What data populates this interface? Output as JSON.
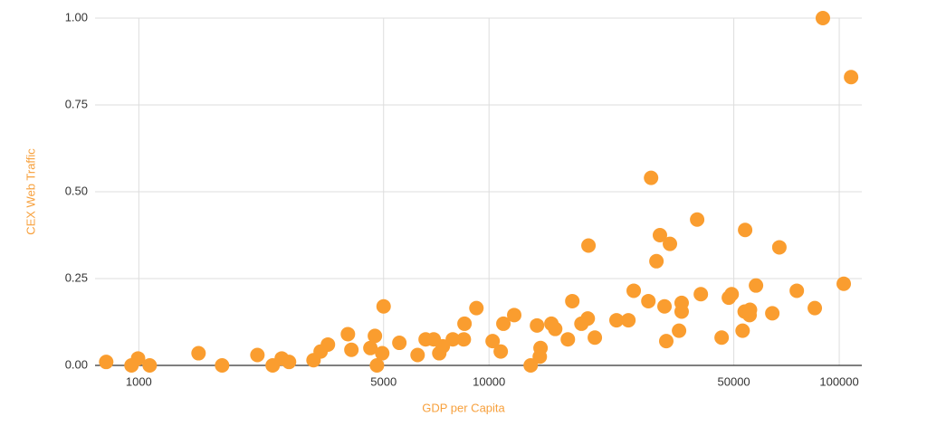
{
  "chart_data": {
    "type": "scatter",
    "x_label": "GDP per Capita",
    "y_label": "CEX Web Traffic",
    "xscale": "log",
    "grid": true,
    "color": "#fa9d2f",
    "xlim": [
      750,
      116000
    ],
    "ylim": [
      0,
      1
    ],
    "xticks": [
      1000,
      5000,
      10000,
      50000,
      100000
    ],
    "yticks": [
      {
        "value": 0,
        "label": "0.00"
      },
      {
        "value": 0.25,
        "label": "0.25"
      },
      {
        "value": 0.5,
        "label": "0.50"
      },
      {
        "value": 0.75,
        "label": "0.75"
      },
      {
        "value": 1,
        "label": "1.00"
      }
    ],
    "x": [
      807,
      995,
      953,
      1074,
      1481,
      1729,
      2181,
      2411,
      2559,
      2685,
      3154,
      3305,
      3467,
      3954,
      4046,
      4584,
      4722,
      4786,
      4955,
      5000,
      5546,
      6252,
      6592,
      6950,
      7211,
      7379,
      7880,
      8472,
      8511,
      9204,
      10240,
      10800,
      10990,
      11800,
      13150,
      13710,
      14030,
      13960,
      15070,
      15450,
      16790,
      17290,
      18360,
      19140,
      19230,
      20050,
      23120,
      25000,
      25890,
      28510,
      29020,
      30060,
      30760,
      31700,
      32070,
      32850,
      34880,
      35480,
      35480,
      39290,
      40250,
      46150,
      48390,
      49300,
      52970,
      53860,
      53700,
      55460,
      55600,
      57850,
      64400,
      67450,
      75640,
      85150,
      89790,
      103000,
      108100
    ],
    "values": [
      0.01,
      0.02,
      0.0,
      0.0,
      0.035,
      0.0,
      0.03,
      0.0,
      0.02,
      0.01,
      0.015,
      0.04,
      0.06,
      0.09,
      0.045,
      0.05,
      0.085,
      0.0,
      0.035,
      0.17,
      0.065,
      0.03,
      0.075,
      0.075,
      0.035,
      0.055,
      0.075,
      0.075,
      0.12,
      0.165,
      0.07,
      0.04,
      0.12,
      0.145,
      0.0,
      0.115,
      0.05,
      0.025,
      0.12,
      0.105,
      0.075,
      0.185,
      0.12,
      0.135,
      0.345,
      0.08,
      0.13,
      0.13,
      0.215,
      0.185,
      0.54,
      0.3,
      0.375,
      0.17,
      0.07,
      0.35,
      0.1,
      0.18,
      0.155,
      0.42,
      0.205,
      0.08,
      0.195,
      0.205,
      0.1,
      0.39,
      0.155,
      0.145,
      0.16,
      0.23,
      0.15,
      0.34,
      0.215,
      0.165,
      1.0,
      0.235,
      0.83
    ]
  }
}
